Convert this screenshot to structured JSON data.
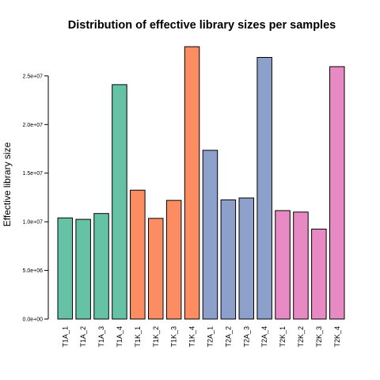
{
  "chart_data": {
    "type": "bar",
    "title": "Distribution of effective library sizes per samples",
    "xlabel": "",
    "ylabel": "Effective library size",
    "ylim": [
      0,
      28000000
    ],
    "yticks": [
      0,
      5000000,
      10000000,
      15000000,
      20000000,
      25000000
    ],
    "ytick_labels": [
      "0.0e+00",
      "5.0e+06",
      "1.0e+07",
      "1.5e+07",
      "2.0e+07",
      "2.5e+07"
    ],
    "grid": false,
    "categories": [
      "T1A_1",
      "T1A_2",
      "T1A_3",
      "T1A_4",
      "T1K_1",
      "T1K_2",
      "T1K_3",
      "T1K_4",
      "T2A_1",
      "T2A_2",
      "T2A_3",
      "T2A_4",
      "T2K_1",
      "T2K_2",
      "T2K_3",
      "T2K_4"
    ],
    "values": [
      10400000,
      10250000,
      10850000,
      24100000,
      13250000,
      10350000,
      12200000,
      28000000,
      17350000,
      12250000,
      12450000,
      26900000,
      11150000,
      11000000,
      9250000,
      25950000
    ],
    "colors": [
      "#66c2a5",
      "#66c2a5",
      "#66c2a5",
      "#66c2a5",
      "#fc8d62",
      "#fc8d62",
      "#fc8d62",
      "#fc8d62",
      "#8da0cb",
      "#8da0cb",
      "#8da0cb",
      "#8da0cb",
      "#e78ac3",
      "#e78ac3",
      "#e78ac3",
      "#e78ac3"
    ]
  }
}
